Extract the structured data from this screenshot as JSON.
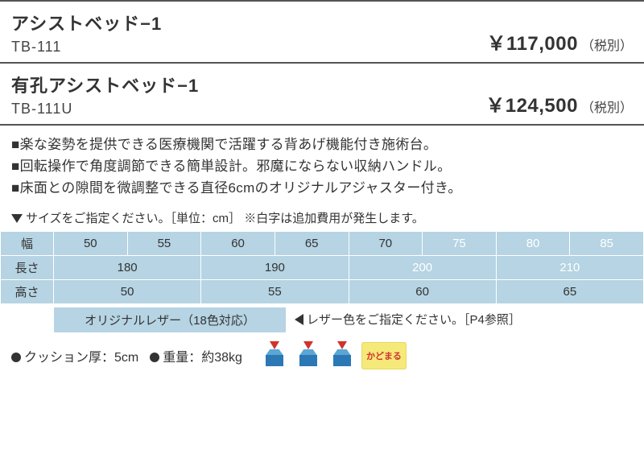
{
  "products": [
    {
      "name": "アシストベッド−1",
      "code": "TB-111",
      "price": "￥117,000",
      "tax": "（税別）"
    },
    {
      "name": "有孔アシストベッド−1",
      "code": "TB-111U",
      "price": "￥124,500",
      "tax": "（税別）"
    }
  ],
  "features": [
    "■楽な姿勢を提供できる医療機関で活躍する背あげ機能付き施術台。",
    "■回転操作で角度調節できる簡単設計。邪魔にならない収納ハンドル。",
    "■床面との隙間を微調整できる直径6cmのオリジナルアジャスター付き。"
  ],
  "size_header": "サイズをご指定ください。［単位：cm］ ※白字は追加費用が発生します。",
  "size_table": {
    "colors": {
      "cell_bg": "#b6d4e3",
      "border": "#ffffff",
      "text": "#333333",
      "white_text": "#ffffff"
    },
    "rows": [
      {
        "label": "幅",
        "cells": [
          {
            "v": "50",
            "w": false
          },
          {
            "v": "55",
            "w": false
          },
          {
            "v": "60",
            "w": false
          },
          {
            "v": "65",
            "w": false
          },
          {
            "v": "70",
            "w": false
          },
          {
            "v": "75",
            "w": true
          },
          {
            "v": "80",
            "w": true
          },
          {
            "v": "85",
            "w": true
          }
        ]
      },
      {
        "label": "長さ",
        "cells": [
          {
            "v": "180",
            "w": false,
            "span": 2
          },
          {
            "v": "190",
            "w": false,
            "span": 2
          },
          {
            "v": "200",
            "w": true,
            "span": 2
          },
          {
            "v": "210",
            "w": true,
            "span": 2
          }
        ]
      },
      {
        "label": "高さ",
        "cells": [
          {
            "v": "50",
            "w": false,
            "span": 2
          },
          {
            "v": "55",
            "w": false,
            "span": 2
          },
          {
            "v": "60",
            "w": false,
            "span": 2
          },
          {
            "v": "65",
            "w": false,
            "span": 2
          }
        ]
      }
    ]
  },
  "leather": {
    "label": "オリジナルレザー（18色対応）",
    "note": "レザー色をご指定ください。［P4参照］"
  },
  "specs": {
    "cushion": "クッション厚：5cm",
    "weight": "重量：約38kg"
  },
  "kadomaru_label": "かどまる"
}
